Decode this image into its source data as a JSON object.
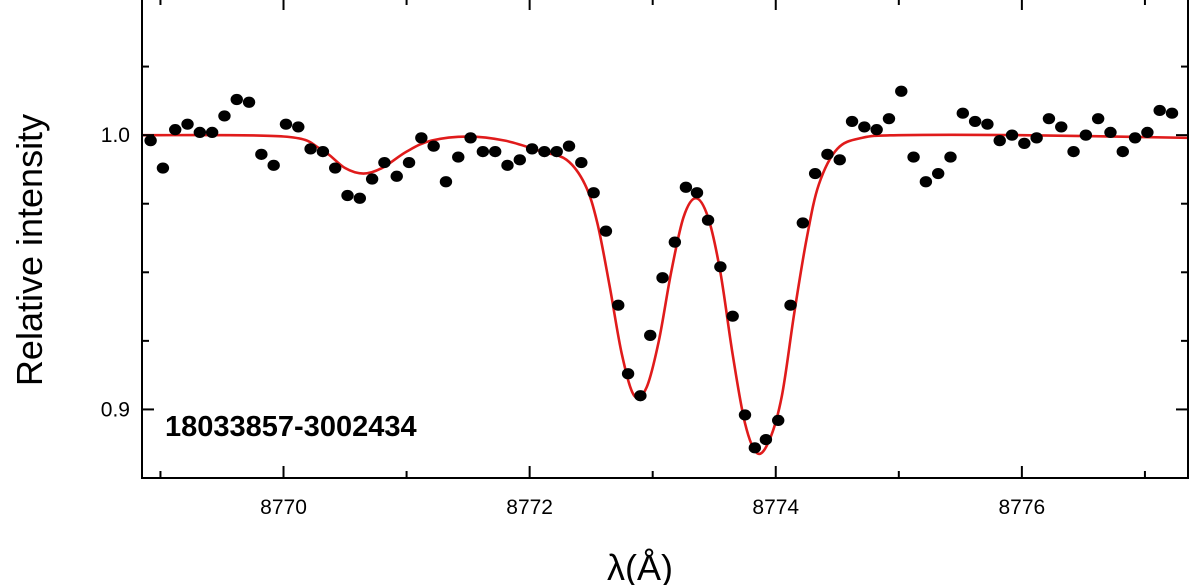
{
  "chart_data": {
    "type": "scatter",
    "xlabel": "λ(Å)",
    "ylabel": "Relative intensity",
    "annotation": "18033857-3002434",
    "xlim": [
      8768.85,
      8777.35
    ],
    "ylim": [
      0.875,
      1.05
    ],
    "x_ticks": [
      8770,
      8772,
      8774,
      8776
    ],
    "x_tick_labels": [
      "8770",
      "8772",
      "8774",
      "8776"
    ],
    "y_ticks": [
      0.9,
      1.0
    ],
    "y_tick_labels": [
      "0.9",
      "1.0"
    ],
    "y_minor_ticks": [
      0.925,
      0.95,
      0.975,
      1.025
    ],
    "grid": false,
    "colors": {
      "points": "#000000",
      "fit": "#e01b1b"
    },
    "series": [
      {
        "type": "scatter",
        "points": [
          [
            8768.92,
            0.998
          ],
          [
            8769.02,
            0.988
          ],
          [
            8769.12,
            1.002
          ],
          [
            8769.22,
            1.004
          ],
          [
            8769.32,
            1.001
          ],
          [
            8769.42,
            1.001
          ],
          [
            8769.52,
            1.007
          ],
          [
            8769.62,
            1.013
          ],
          [
            8769.72,
            1.012
          ],
          [
            8769.82,
            0.993
          ],
          [
            8769.92,
            0.989
          ],
          [
            8770.02,
            1.004
          ],
          [
            8770.12,
            1.003
          ],
          [
            8770.22,
            0.995
          ],
          [
            8770.32,
            0.994
          ],
          [
            8770.42,
            0.988
          ],
          [
            8770.52,
            0.978
          ],
          [
            8770.62,
            0.977
          ],
          [
            8770.72,
            0.984
          ],
          [
            8770.82,
            0.99
          ],
          [
            8770.92,
            0.985
          ],
          [
            8771.02,
            0.99
          ],
          [
            8771.12,
            0.999
          ],
          [
            8771.22,
            0.996
          ],
          [
            8771.32,
            0.983
          ],
          [
            8771.42,
            0.992
          ],
          [
            8771.52,
            0.999
          ],
          [
            8771.62,
            0.994
          ],
          [
            8771.72,
            0.994
          ],
          [
            8771.82,
            0.989
          ],
          [
            8771.92,
            0.991
          ],
          [
            8772.02,
            0.995
          ],
          [
            8772.12,
            0.994
          ],
          [
            8772.22,
            0.994
          ],
          [
            8772.32,
            0.996
          ],
          [
            8772.42,
            0.99
          ],
          [
            8772.52,
            0.979
          ],
          [
            8772.62,
            0.965
          ],
          [
            8772.72,
            0.938
          ],
          [
            8772.8,
            0.913
          ],
          [
            8772.9,
            0.905
          ],
          [
            8772.98,
            0.927
          ],
          [
            8773.08,
            0.948
          ],
          [
            8773.18,
            0.961
          ],
          [
            8773.27,
            0.981
          ],
          [
            8773.36,
            0.979
          ],
          [
            8773.45,
            0.969
          ],
          [
            8773.55,
            0.952
          ],
          [
            8773.65,
            0.934
          ],
          [
            8773.75,
            0.898
          ],
          [
            8773.83,
            0.886
          ],
          [
            8773.92,
            0.889
          ],
          [
            8774.02,
            0.896
          ],
          [
            8774.12,
            0.938
          ],
          [
            8774.22,
            0.968
          ],
          [
            8774.32,
            0.986
          ],
          [
            8774.42,
            0.993
          ],
          [
            8774.52,
            0.991
          ],
          [
            8774.62,
            1.005
          ],
          [
            8774.72,
            1.003
          ],
          [
            8774.82,
            1.002
          ],
          [
            8774.92,
            1.006
          ],
          [
            8775.02,
            1.016
          ],
          [
            8775.12,
            0.992
          ],
          [
            8775.22,
            0.983
          ],
          [
            8775.32,
            0.986
          ],
          [
            8775.42,
            0.992
          ],
          [
            8775.52,
            1.008
          ],
          [
            8775.62,
            1.005
          ],
          [
            8775.72,
            1.004
          ],
          [
            8775.82,
            0.998
          ],
          [
            8775.92,
            1.0
          ],
          [
            8776.02,
            0.997
          ],
          [
            8776.12,
            0.999
          ],
          [
            8776.22,
            1.006
          ],
          [
            8776.32,
            1.003
          ],
          [
            8776.42,
            0.994
          ],
          [
            8776.52,
            1.0
          ],
          [
            8776.62,
            1.006
          ],
          [
            8776.72,
            1.001
          ],
          [
            8776.82,
            0.994
          ],
          [
            8776.92,
            0.999
          ],
          [
            8777.02,
            1.001
          ],
          [
            8777.12,
            1.009
          ],
          [
            8777.22,
            1.008
          ]
        ]
      },
      {
        "type": "line",
        "points": [
          [
            8768.85,
            1.0
          ],
          [
            8770.0,
            0.9995
          ],
          [
            8770.3,
            0.995
          ],
          [
            8770.5,
            0.988
          ],
          [
            8770.65,
            0.986
          ],
          [
            8770.8,
            0.988
          ],
          [
            8771.0,
            0.994
          ],
          [
            8771.2,
            0.998
          ],
          [
            8771.5,
            0.9995
          ],
          [
            8771.8,
            0.998
          ],
          [
            8772.1,
            0.994
          ],
          [
            8772.3,
            0.991
          ],
          [
            8772.45,
            0.982
          ],
          [
            8772.55,
            0.968
          ],
          [
            8772.65,
            0.945
          ],
          [
            8772.75,
            0.92
          ],
          [
            8772.85,
            0.905
          ],
          [
            8772.95,
            0.908
          ],
          [
            8773.05,
            0.925
          ],
          [
            8773.15,
            0.95
          ],
          [
            8773.25,
            0.97
          ],
          [
            8773.35,
            0.977
          ],
          [
            8773.45,
            0.97
          ],
          [
            8773.55,
            0.95
          ],
          [
            8773.65,
            0.92
          ],
          [
            8773.75,
            0.895
          ],
          [
            8773.85,
            0.884
          ],
          [
            8773.95,
            0.889
          ],
          [
            8774.05,
            0.905
          ],
          [
            8774.15,
            0.935
          ],
          [
            8774.25,
            0.962
          ],
          [
            8774.35,
            0.982
          ],
          [
            8774.5,
            0.995
          ],
          [
            8774.7,
            0.999
          ],
          [
            8775.0,
            1.0
          ],
          [
            8776.0,
            1.0
          ],
          [
            8777.35,
            0.999
          ]
        ]
      }
    ]
  }
}
